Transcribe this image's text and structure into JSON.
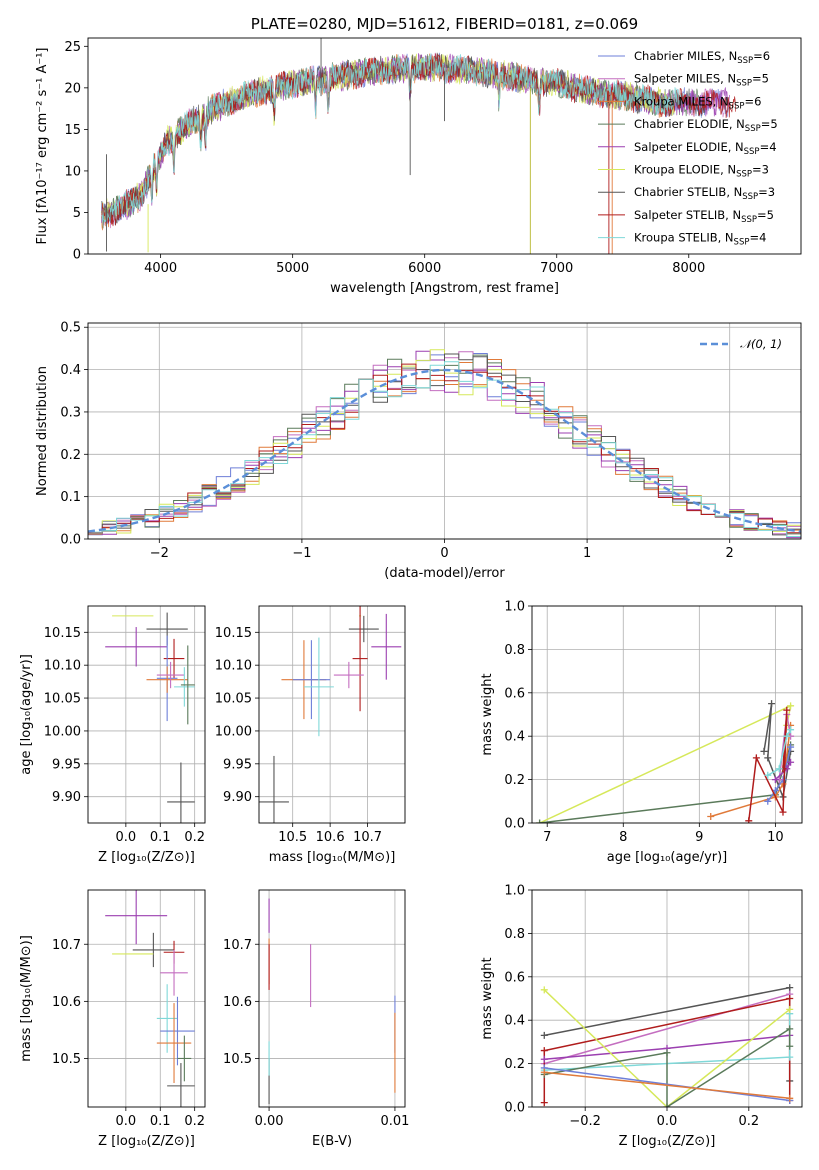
{
  "chart_data": [
    {
      "id": "spectrum",
      "type": "line",
      "title": "PLATE=0280, MJD=51612, FIBERID=0181, z=0.069",
      "xlabel": "wavelength [Angstrom, rest frame]",
      "ylabel": "Flux [fλ10⁻¹⁷ erg cm⁻² s⁻¹ A⁻¹]",
      "xlim": [
        3450,
        8850
      ],
      "ylim": [
        0,
        26
      ],
      "xticks": [
        4000,
        5000,
        6000,
        7000,
        8000
      ],
      "yticks": [
        0,
        5,
        10,
        15,
        20,
        25
      ],
      "grid": false,
      "legend": "top-right",
      "series": [
        {
          "name": "Chabrier MILES, N_SSP=6",
          "label": "Chabrier MILES, N",
          "sub": "SSP",
          "tail": "=6",
          "color": "#6e7fd8"
        },
        {
          "name": "Salpeter MILES, N_SSP=5",
          "label": "Salpeter MILES, N",
          "sub": "SSP",
          "tail": "=5",
          "color": "#c46ec0"
        },
        {
          "name": "Kroupa MILES, N_SSP=6",
          "label": "Kroupa MILES, N",
          "sub": "SSP",
          "tail": "=6",
          "color": "#e07a3a"
        },
        {
          "name": "Chabrier ELODIE, N_SSP=5",
          "label": "Chabrier ELODIE, N",
          "sub": "SSP",
          "tail": "=5",
          "color": "#5a7a5a"
        },
        {
          "name": "Salpeter ELODIE, N_SSP=4",
          "label": "Salpeter ELODIE, N",
          "sub": "SSP",
          "tail": "=4",
          "color": "#9b3fb0"
        },
        {
          "name": "Kroupa ELODIE, N_SSP=3",
          "label": "Kroupa ELODIE, N",
          "sub": "SSP",
          "tail": "=3",
          "color": "#d6e85a"
        },
        {
          "name": "Chabrier STELIB, N_SSP=3",
          "label": "Chabrier STELIB, N",
          "sub": "SSP",
          "tail": "=3",
          "color": "#555555"
        },
        {
          "name": "Salpeter STELIB, N_SSP=5",
          "label": "Salpeter STELIB, N",
          "sub": "SSP",
          "tail": "=5",
          "color": "#b01c1c"
        },
        {
          "name": "Kroupa STELIB, N_SSP=4",
          "label": "Kroupa STELIB, N",
          "sub": "SSP",
          "tail": "=4",
          "color": "#7fd8d8"
        }
      ],
      "continuum": {
        "x": [
          3550,
          3700,
          3850,
          3950,
          4050,
          4200,
          4400,
          4600,
          4800,
          5000,
          5200,
          5400,
          5600,
          5800,
          6000,
          6200,
          6400,
          6600,
          6800,
          7000,
          7200,
          7400,
          7600,
          7800
        ],
        "y": [
          4.5,
          5.5,
          7.0,
          10.5,
          13.5,
          15.5,
          17.5,
          18.8,
          19.8,
          20.5,
          21.0,
          21.5,
          22.0,
          22.2,
          22.5,
          22.3,
          22.0,
          21.5,
          21.0,
          20.5,
          19.8,
          19.2,
          18.8,
          18.2
        ]
      }
    },
    {
      "id": "residuals",
      "type": "histogram",
      "xlabel": "(data-model)/error",
      "ylabel": "Normed distribution",
      "xlim": [
        -2.5,
        2.5
      ],
      "ylim": [
        0,
        0.51
      ],
      "xticks": [
        -2,
        -1,
        0,
        1,
        2
      ],
      "yticks": [
        0.0,
        0.1,
        0.2,
        0.3,
        0.4,
        0.5
      ],
      "grid": true,
      "legend": "top-right",
      "reference": {
        "name": "𝒩(0, 1)",
        "color": "#5b8fd8"
      },
      "bins": {
        "start": -2.5,
        "width": 0.1,
        "count": 50
      }
    },
    {
      "id": "age-vs-Z",
      "type": "errorbar",
      "xlabel": "Z [log₁₀(Z/Z⊙)]",
      "ylabel": "age  [log₁₀(age/yr)]",
      "xlim": [
        -0.11,
        0.23
      ],
      "ylim": [
        9.86,
        10.19
      ],
      "xticks": [
        0.0,
        0.1,
        0.2
      ],
      "yticks": [
        9.9,
        9.95,
        10.0,
        10.05,
        10.1,
        10.15
      ],
      "grid": true,
      "points": [
        {
          "color": "#d6e85a",
          "x": 0.02,
          "xerr": 0.06,
          "y": 10.175,
          "yerr": 0.0
        },
        {
          "color": "#555555",
          "x": 0.12,
          "xerr": 0.06,
          "y": 10.155,
          "yerr": 0.025
        },
        {
          "color": "#9b3fb0",
          "x": 0.03,
          "xerr": 0.09,
          "y": 10.128,
          "yerr": 0.03
        },
        {
          "color": "#b01c1c",
          "x": 0.14,
          "xerr": 0.03,
          "y": 10.11,
          "yerr": 0.03
        },
        {
          "color": "#6e7fd8",
          "x": 0.12,
          "xerr": 0.03,
          "y": 10.08,
          "yerr": 0.065
        },
        {
          "color": "#e07a3a",
          "x": 0.12,
          "xerr": 0.06,
          "y": 10.078,
          "yerr": 0.02
        },
        {
          "color": "#c46ec0",
          "x": 0.13,
          "xerr": 0.04,
          "y": 10.085,
          "yerr": 0.02
        },
        {
          "color": "#7fd8d8",
          "x": 0.17,
          "xerr": 0.03,
          "y": 10.067,
          "yerr": 0.03
        },
        {
          "color": "#5a7a5a",
          "x": 0.18,
          "xerr": 0.02,
          "y": 10.07,
          "yerr": 0.06
        },
        {
          "color": "#555555",
          "x": 0.16,
          "xerr": 0.04,
          "y": 9.892,
          "yerr": 0.06
        }
      ]
    },
    {
      "id": "age-vs-mass",
      "type": "errorbar",
      "xlabel": "mass [log₁₀(M/M⊙)]",
      "ylabel": "",
      "xlim": [
        10.41,
        10.8
      ],
      "ylim": [
        9.86,
        10.19
      ],
      "xticks": [
        10.5,
        10.6,
        10.7
      ],
      "yticks": [
        9.9,
        9.95,
        10.0,
        10.05,
        10.1,
        10.15
      ],
      "grid": true,
      "points": [
        {
          "color": "#d6e85a",
          "x": 10.68,
          "xerr": 0.0,
          "y": 10.175,
          "yerr": 0.0
        },
        {
          "color": "#555555",
          "x": 10.69,
          "xerr": 0.04,
          "y": 10.155,
          "yerr": 0.02
        },
        {
          "color": "#9b3fb0",
          "x": 10.75,
          "xerr": 0.04,
          "y": 10.128,
          "yerr": 0.05
        },
        {
          "color": "#b01c1c",
          "x": 10.68,
          "xerr": 0.02,
          "y": 10.11,
          "yerr": 0.08
        },
        {
          "color": "#c46ec0",
          "x": 10.65,
          "xerr": 0.04,
          "y": 10.085,
          "yerr": 0.02
        },
        {
          "color": "#e07a3a",
          "x": 10.53,
          "xerr": 0.06,
          "y": 10.078,
          "yerr": 0.06
        },
        {
          "color": "#6e7fd8",
          "x": 10.55,
          "xerr": 0.05,
          "y": 10.078,
          "yerr": 0.06
        },
        {
          "color": "#7fd8d8",
          "x": 10.57,
          "xerr": 0.04,
          "y": 10.067,
          "yerr": 0.075
        },
        {
          "color": "#555555",
          "x": 10.45,
          "xerr": 0.04,
          "y": 9.892,
          "yerr": 0.07
        }
      ]
    },
    {
      "id": "weight-vs-age",
      "type": "line",
      "xlabel": "age  [log₁₀(age/yr)]",
      "ylabel": "mass weight",
      "xlim": [
        6.8,
        10.35
      ],
      "ylim": [
        0,
        1.0
      ],
      "xticks": [
        7,
        8,
        9,
        10
      ],
      "yticks": [
        0.0,
        0.2,
        0.4,
        0.6,
        0.8,
        1.0
      ],
      "grid": true,
      "series": [
        {
          "color": "#d6e85a",
          "x": [
            6.9,
            10.2,
            10.15
          ],
          "y": [
            0.0,
            0.54,
            0.45
          ]
        },
        {
          "color": "#5a7a5a",
          "x": [
            6.9,
            10.0,
            10.2,
            10.15
          ],
          "y": [
            0.0,
            0.13,
            0.36,
            0.3
          ]
        },
        {
          "color": "#555555",
          "x": [
            9.85,
            9.95,
            9.9,
            10.1,
            10.2
          ],
          "y": [
            0.33,
            0.55,
            0.3,
            0.12,
            0.33
          ]
        },
        {
          "color": "#e07a3a",
          "x": [
            9.15,
            10.0,
            10.1,
            10.2
          ],
          "y": [
            0.03,
            0.12,
            0.18,
            0.45
          ]
        },
        {
          "color": "#6e7fd8",
          "x": [
            9.9,
            10.0,
            10.1,
            10.2
          ],
          "y": [
            0.1,
            0.15,
            0.2,
            0.35
          ]
        },
        {
          "color": "#c46ec0",
          "x": [
            10.05,
            10.15,
            10.2
          ],
          "y": [
            0.2,
            0.5,
            0.4
          ]
        },
        {
          "color": "#9b3fb0",
          "x": [
            10.0,
            10.15,
            10.2
          ],
          "y": [
            0.2,
            0.25,
            0.28
          ]
        },
        {
          "color": "#b01c1c",
          "x": [
            9.65,
            9.75,
            10.1,
            10.15,
            10.1
          ],
          "y": [
            0.01,
            0.3,
            0.05,
            0.52,
            0.25
          ]
        },
        {
          "color": "#7fd8d8",
          "x": [
            9.9,
            10.05,
            10.15,
            10.2
          ],
          "y": [
            0.22,
            0.25,
            0.4,
            0.43
          ]
        }
      ]
    },
    {
      "id": "mass-vs-Z",
      "type": "errorbar",
      "xlabel": "Z [log₁₀(Z/Z⊙)]",
      "ylabel": "mass [log₁₀(M/M⊙)]",
      "xlim": [
        -0.11,
        0.23
      ],
      "ylim": [
        10.415,
        10.795
      ],
      "xticks": [
        0.0,
        0.1,
        0.2
      ],
      "yticks": [
        10.5,
        10.6,
        10.7
      ],
      "grid": true,
      "points": [
        {
          "color": "#9b3fb0",
          "x": 0.03,
          "xerr": 0.09,
          "y": 10.75,
          "yerr": 0.05
        },
        {
          "color": "#555555",
          "x": 0.08,
          "xerr": 0.06,
          "y": 10.69,
          "yerr": 0.03
        },
        {
          "color": "#b01c1c",
          "x": 0.14,
          "xerr": 0.03,
          "y": 10.686,
          "yerr": 0.02
        },
        {
          "color": "#d6e85a",
          "x": 0.02,
          "xerr": 0.06,
          "y": 10.683,
          "yerr": 0.0
        },
        {
          "color": "#c46ec0",
          "x": 0.14,
          "xerr": 0.04,
          "y": 10.65,
          "yerr": 0.04
        },
        {
          "color": "#7fd8d8",
          "x": 0.12,
          "xerr": 0.03,
          "y": 10.57,
          "yerr": 0.06
        },
        {
          "color": "#6e7fd8",
          "x": 0.15,
          "xerr": 0.05,
          "y": 10.548,
          "yerr": 0.06
        },
        {
          "color": "#e07a3a",
          "x": 0.14,
          "xerr": 0.05,
          "y": 10.527,
          "yerr": 0.07
        },
        {
          "color": "#5a7a5a",
          "x": 0.17,
          "xerr": 0.02,
          "y": 10.5,
          "yerr": 0.04
        },
        {
          "color": "#555555",
          "x": 0.16,
          "xerr": 0.04,
          "y": 10.452,
          "yerr": 0.04
        }
      ]
    },
    {
      "id": "mass-vs-EBV",
      "type": "errorbar",
      "xlabel": "E(B-V)",
      "ylabel": "",
      "xlim": [
        -0.0008,
        0.0108
      ],
      "ylim": [
        10.415,
        10.795
      ],
      "xticks": [
        0.0,
        0.01
      ],
      "yticks": [
        10.5,
        10.6,
        10.7
      ],
      "grid": true,
      "points": [
        {
          "color": "#9b3fb0",
          "x": 0.0,
          "xerr": 0.0,
          "y": 10.75,
          "yerr": 0.03
        },
        {
          "color": "#e07a3a",
          "x": 0.0,
          "xerr": 0.0,
          "y": 10.67,
          "yerr": 0.04
        },
        {
          "color": "#b01c1c",
          "x": 0.0,
          "xerr": 0.0,
          "y": 10.66,
          "yerr": 0.04
        },
        {
          "color": "#555555",
          "x": 0.0,
          "xerr": 0.0,
          "y": 10.46,
          "yerr": 0.04
        },
        {
          "color": "#7fd8d8",
          "x": 0.0,
          "xerr": 0.0,
          "y": 10.5,
          "yerr": 0.03
        },
        {
          "color": "#c46ec0",
          "x": 0.0033,
          "xerr": 0.0,
          "y": 10.645,
          "yerr": 0.055
        },
        {
          "color": "#6e7fd8",
          "x": 0.01,
          "xerr": 0.0,
          "y": 10.56,
          "yerr": 0.05
        },
        {
          "color": "#e07a3a",
          "x": 0.01,
          "xerr": 0.0,
          "y": 10.51,
          "yerr": 0.07
        }
      ]
    },
    {
      "id": "weight-vs-Z",
      "type": "line",
      "xlabel": "Z [log₁₀(Z/Z⊙)]",
      "ylabel": "mass weight",
      "xlim": [
        -0.33,
        0.33
      ],
      "ylim": [
        0,
        1.0
      ],
      "xticks": [
        -0.2,
        0.0,
        0.2
      ],
      "yticks": [
        0.0,
        0.2,
        0.4,
        0.6,
        0.8,
        1.0
      ],
      "grid": true,
      "series": [
        {
          "color": "#555555",
          "x": [
            -0.3,
            0.3,
            0.3
          ],
          "y": [
            0.33,
            0.55,
            0.12
          ]
        },
        {
          "color": "#c46ec0",
          "x": [
            -0.3,
            0.3
          ],
          "y": [
            0.2,
            0.52
          ]
        },
        {
          "color": "#b01c1c",
          "x": [
            -0.3,
            -0.3,
            0.3,
            0.3
          ],
          "y": [
            0.02,
            0.26,
            0.5,
            0.03
          ]
        },
        {
          "color": "#9b3fb0",
          "x": [
            -0.3,
            0.0,
            0.3
          ],
          "y": [
            0.22,
            0.27,
            0.33
          ]
        },
        {
          "color": "#7fd8d8",
          "x": [
            -0.3,
            0.3,
            0.3
          ],
          "y": [
            0.17,
            0.23,
            0.43
          ]
        },
        {
          "color": "#d6e85a",
          "x": [
            -0.3,
            0.0,
            0.3
          ],
          "y": [
            0.54,
            0.0,
            0.45
          ]
        },
        {
          "color": "#5a7a5a",
          "x": [
            -0.3,
            0.0,
            0.0,
            0.3,
            0.3
          ],
          "y": [
            0.15,
            0.25,
            0.0,
            0.36,
            0.28
          ]
        },
        {
          "color": "#6e7fd8",
          "x": [
            -0.3,
            0.3
          ],
          "y": [
            0.18,
            0.03
          ]
        },
        {
          "color": "#e07a3a",
          "x": [
            -0.3,
            0.3
          ],
          "y": [
            0.16,
            0.04
          ]
        }
      ]
    }
  ]
}
